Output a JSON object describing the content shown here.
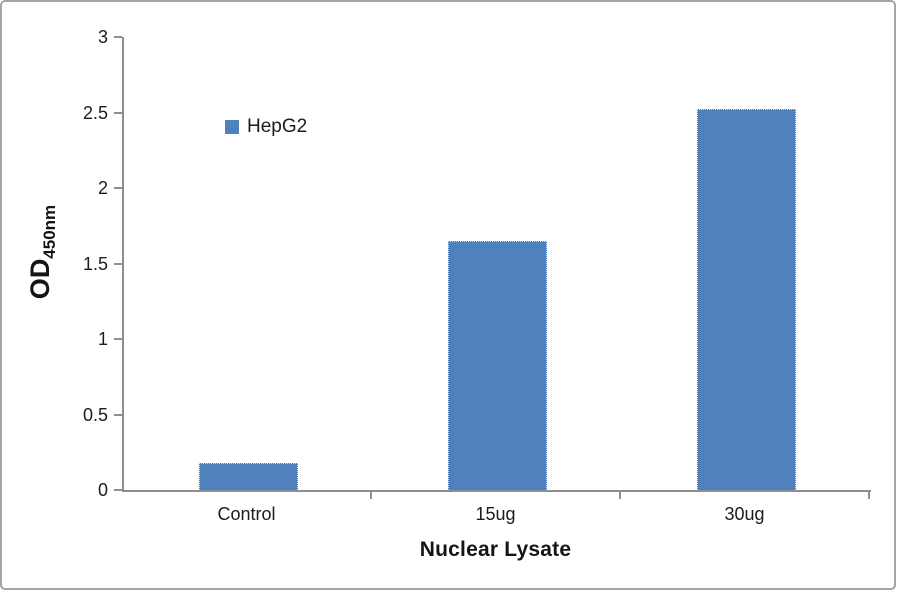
{
  "chart_data": {
    "type": "bar",
    "title": "",
    "categories": [
      "Control",
      "15ug",
      "30ug"
    ],
    "series": [
      {
        "name": "HepG2",
        "values": [
          0.18,
          1.65,
          2.52
        ],
        "color": "#4F81BD"
      }
    ],
    "xlabel": "Nuclear Lysate",
    "ylabel_main": "OD",
    "ylabel_sub": "450nm",
    "ylim": [
      0,
      3
    ],
    "yticks": [
      0,
      0.5,
      1,
      1.5,
      2,
      2.5,
      3
    ],
    "grid": false,
    "legend": {
      "label": "HepG2",
      "color": "#4F81BD",
      "position": "inside-upper-left"
    },
    "colors": {
      "bar": "#4F81BD",
      "bar_border": "#c9d9ee",
      "axis": "#8e8e8e",
      "text": "#1c1c1c",
      "frame_border": "#a1a4aa",
      "background": "#ffffff"
    }
  }
}
